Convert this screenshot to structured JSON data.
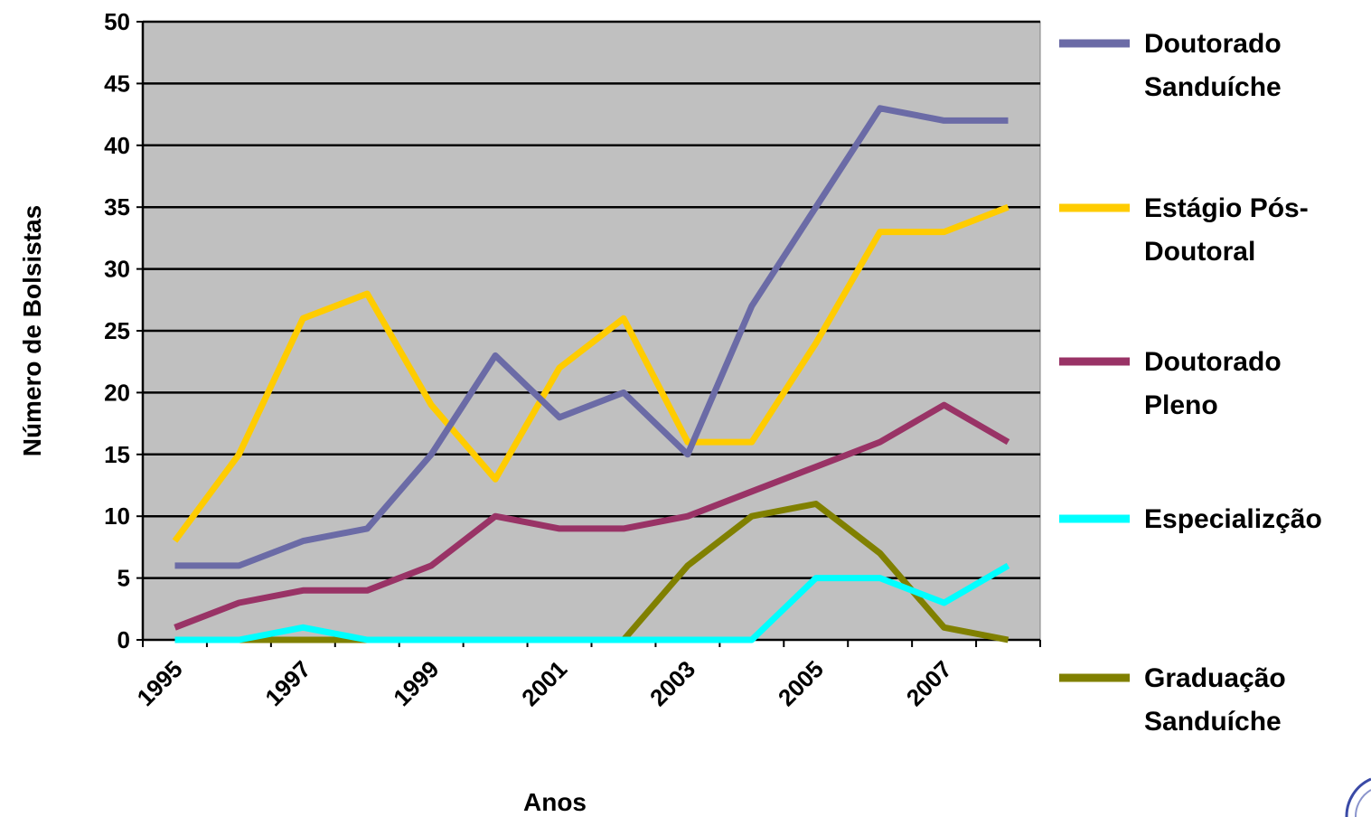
{
  "chart_data": {
    "type": "line",
    "xlabel": "Anos",
    "ylabel": "Número de Bolsistas",
    "ylim": [
      0,
      50
    ],
    "yticks": [
      0,
      5,
      10,
      15,
      20,
      25,
      30,
      35,
      40,
      45,
      50
    ],
    "x": [
      1995,
      1996,
      1997,
      1998,
      1999,
      2000,
      2001,
      2002,
      2003,
      2004,
      2005,
      2006,
      2007,
      2008
    ],
    "xtick_labels": [
      "1995",
      "1997",
      "1999",
      "2001",
      "2003",
      "2005",
      "2007"
    ],
    "grid": true,
    "plot_background": "#C0C0C0",
    "legend_position": "right",
    "series": [
      {
        "name": "Doutorado Sanduíche",
        "legend_lines": [
          "Doutorado",
          "Sanduíche"
        ],
        "color": "#6B6BA6",
        "values": [
          6,
          6,
          8,
          9,
          15,
          23,
          18,
          20,
          15,
          27,
          35,
          43,
          42,
          42
        ]
      },
      {
        "name": "Estágio Pós-Doutoral",
        "legend_lines": [
          "Estágio Pós-",
          "Doutoral"
        ],
        "color": "#FFCC00",
        "values": [
          8,
          15,
          26,
          28,
          19,
          13,
          22,
          26,
          16,
          16,
          24,
          33,
          33,
          35
        ]
      },
      {
        "name": "Doutorado Pleno",
        "legend_lines": [
          "Doutorado",
          "Pleno"
        ],
        "color": "#993366",
        "values": [
          1,
          3,
          4,
          4,
          6,
          10,
          9,
          9,
          10,
          12,
          14,
          16,
          19,
          16
        ]
      },
      {
        "name": "Especializção",
        "legend_lines": [
          "Especializção"
        ],
        "color": "#00FFFF",
        "values": [
          0,
          0,
          1,
          0,
          0,
          0,
          0,
          0,
          0,
          0,
          5,
          5,
          3,
          6
        ]
      },
      {
        "name": "Graduação Sanduíche",
        "legend_lines": [
          "Graduação",
          "Sanduíche"
        ],
        "color": "#808000",
        "values": [
          0,
          0,
          0,
          0,
          0,
          0,
          0,
          0,
          6,
          10,
          11,
          7,
          1,
          0
        ]
      }
    ]
  }
}
